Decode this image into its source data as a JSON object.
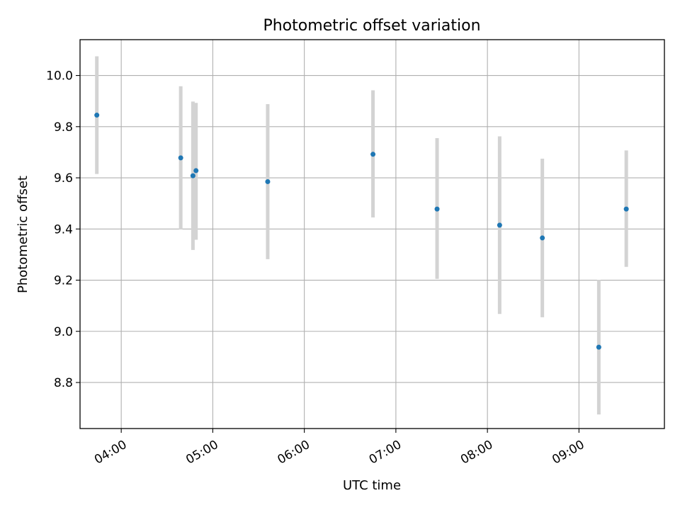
{
  "chart_data": {
    "type": "scatter",
    "title": "Photometric offset variation",
    "xlabel": "UTC time",
    "ylabel": "Photometric offset",
    "x_ticks": [
      "04:00",
      "05:00",
      "06:00",
      "07:00",
      "08:00",
      "09:00"
    ],
    "y_ticks": [
      "8.8",
      "9.0",
      "9.2",
      "9.4",
      "9.6",
      "9.8",
      "10.0"
    ],
    "xlim": [
      "03:33",
      "09:56"
    ],
    "ylim": [
      8.62,
      10.14
    ],
    "grid": true,
    "marker_color": "#1f77b4",
    "errorbar_color": "#d3d3d3",
    "points": [
      {
        "x": "03:44",
        "y": 9.845,
        "yerr_low": 9.615,
        "yerr_high": 10.075
      },
      {
        "x": "04:39",
        "y": 9.678,
        "yerr_low": 9.398,
        "yerr_high": 9.958
      },
      {
        "x": "04:47",
        "y": 9.608,
        "yerr_low": 9.318,
        "yerr_high": 9.898
      },
      {
        "x": "04:49",
        "y": 9.628,
        "yerr_low": 9.358,
        "yerr_high": 9.893
      },
      {
        "x": "05:36",
        "y": 9.585,
        "yerr_low": 9.282,
        "yerr_high": 9.888
      },
      {
        "x": "06:45",
        "y": 9.692,
        "yerr_low": 9.445,
        "yerr_high": 9.942
      },
      {
        "x": "07:27",
        "y": 9.478,
        "yerr_low": 9.205,
        "yerr_high": 9.755
      },
      {
        "x": "08:08",
        "y": 9.415,
        "yerr_low": 9.068,
        "yerr_high": 9.762
      },
      {
        "x": "08:36",
        "y": 9.365,
        "yerr_low": 9.055,
        "yerr_high": 9.675
      },
      {
        "x": "09:13",
        "y": 8.938,
        "yerr_low": 8.675,
        "yerr_high": 9.201
      },
      {
        "x": "09:31",
        "y": 9.478,
        "yerr_low": 9.252,
        "yerr_high": 9.707
      }
    ]
  }
}
